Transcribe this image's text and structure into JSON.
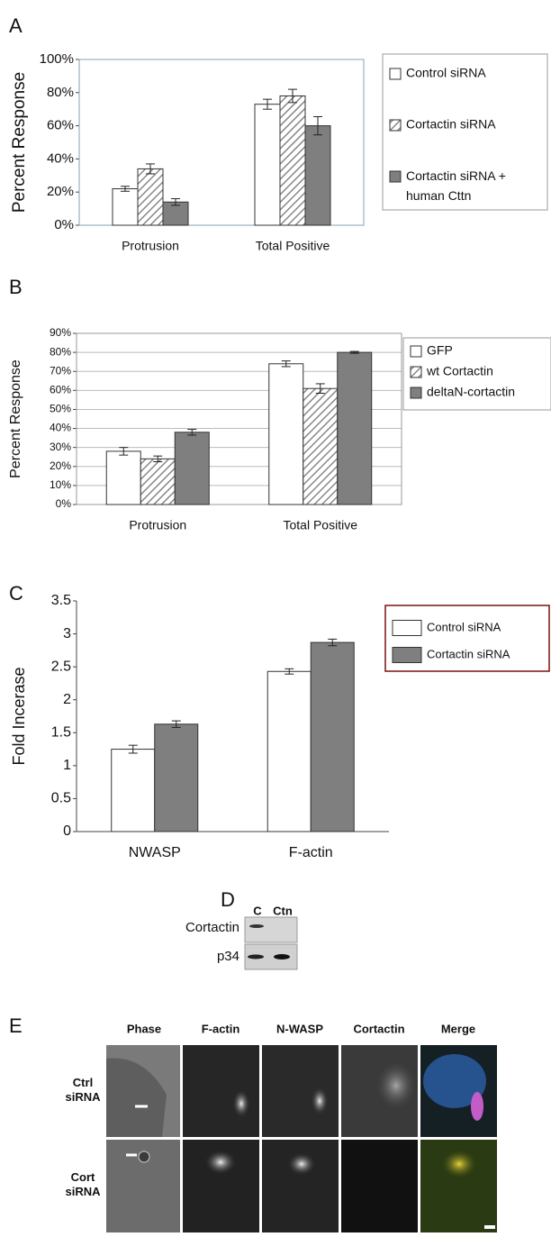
{
  "chart_data": [
    {
      "type": "bar",
      "panel_label": "A",
      "y_label": "Percent Response",
      "categories": [
        "Protrusion",
        "Total Positive"
      ],
      "series": [
        {
          "name": "Control siRNA",
          "color": "#ffffff",
          "values": [
            22,
            73
          ],
          "errors": [
            1.5,
            3
          ]
        },
        {
          "name": "Cortactin siRNA",
          "color": "#ffffff",
          "hatch": true,
          "values": [
            34,
            78
          ],
          "errors": [
            3,
            4
          ]
        },
        {
          "name": "Cortactin siRNA + human Cttn",
          "color": "#7f7f7f",
          "values": [
            14,
            60
          ],
          "errors": [
            2,
            5.5
          ]
        }
      ],
      "ylim": [
        0,
        100
      ],
      "yticks": [
        {
          "value": 0,
          "label": "0%"
        },
        {
          "value": 20,
          "label": "20%"
        },
        {
          "value": 40,
          "label": "40%"
        },
        {
          "value": 60,
          "label": "60%"
        },
        {
          "value": 80,
          "label": "80%"
        },
        {
          "value": 100,
          "label": "100%"
        }
      ],
      "grid": false
    },
    {
      "type": "bar",
      "panel_label": "B",
      "y_label": "Percent Response",
      "categories": [
        "Protrusion",
        "Total Positive"
      ],
      "series": [
        {
          "name": "GFP",
          "color": "#ffffff",
          "values": [
            28,
            74
          ],
          "errors": [
            2,
            1.5
          ]
        },
        {
          "name": "wt Cortactin",
          "color": "#ffffff",
          "hatch": true,
          "values": [
            24,
            61
          ],
          "errors": [
            1.5,
            2.5
          ]
        },
        {
          "name": "deltaN-cortactin",
          "color": "#7f7f7f",
          "values": [
            38,
            80
          ],
          "errors": [
            1.5,
            0.5
          ]
        }
      ],
      "ylim": [
        0,
        90
      ],
      "yticks": [
        {
          "value": 0,
          "label": "0%"
        },
        {
          "value": 10,
          "label": "10%"
        },
        {
          "value": 20,
          "label": "20%"
        },
        {
          "value": 30,
          "label": "30%"
        },
        {
          "value": 40,
          "label": "40%"
        },
        {
          "value": 50,
          "label": "50%"
        },
        {
          "value": 60,
          "label": "60%"
        },
        {
          "value": 70,
          "label": "70%"
        },
        {
          "value": 80,
          "label": "80%"
        },
        {
          "value": 90,
          "label": "90%"
        }
      ],
      "grid": true
    },
    {
      "type": "bar",
      "panel_label": "C",
      "y_label": "Fold Incerase",
      "categories": [
        "NWASP",
        "F-actin"
      ],
      "series": [
        {
          "name": "Control siRNA",
          "color": "#ffffff",
          "values": [
            1.25,
            2.43
          ],
          "errors": [
            0.06,
            0.04
          ]
        },
        {
          "name": "Cortactin siRNA",
          "color": "#7f7f7f",
          "values": [
            1.63,
            2.87
          ],
          "errors": [
            0.05,
            0.05
          ]
        }
      ],
      "ylim": [
        0,
        3.5
      ],
      "yticks": [
        0,
        0.5,
        1,
        1.5,
        2,
        2.5,
        3,
        3.5
      ],
      "grid": false
    }
  ],
  "blot": {
    "panel_label": "D",
    "lanes": [
      "C",
      "Ctn"
    ],
    "rows": [
      "Cortactin",
      "p34"
    ]
  },
  "micrographs": {
    "panel_label": "E",
    "columns": [
      "Phase",
      "F-actin",
      "N-WASP",
      "Cortactin",
      "Merge"
    ],
    "rows": [
      "Ctrl siRNA",
      "Cort siRNA"
    ]
  }
}
